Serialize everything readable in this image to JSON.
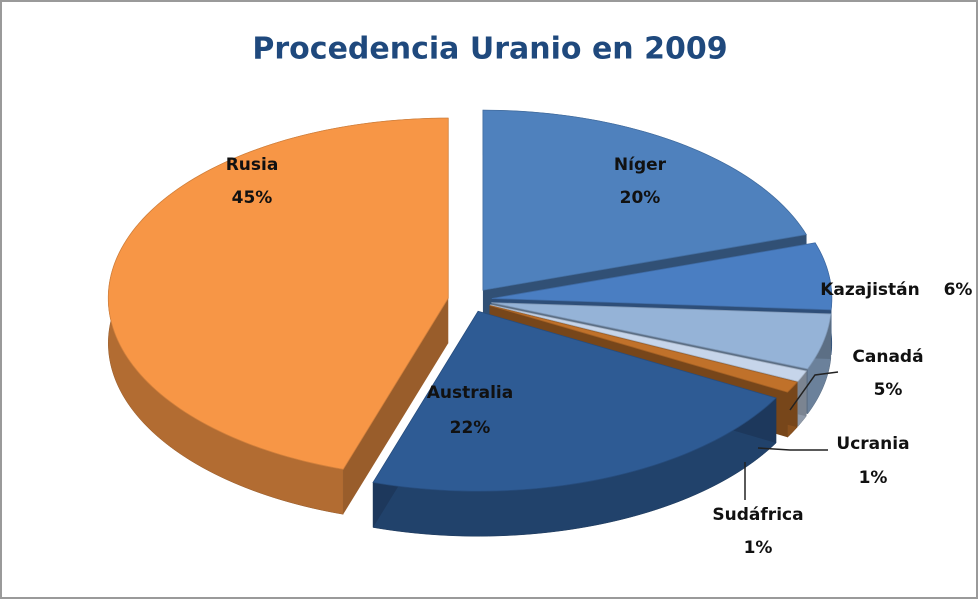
{
  "chart_data": {
    "type": "pie3d",
    "title": "Procedencia Uranio en 2009",
    "categories": [
      "Níger",
      "Kazajistán",
      "Canadá",
      "Ucrania",
      "Sudáfrica",
      "Australia",
      "Rusia"
    ],
    "values": [
      20,
      6,
      5,
      1,
      1,
      22,
      45
    ],
    "value_labels": [
      "20%",
      "6%",
      "5%",
      "1%",
      "1%",
      "22%",
      "45%"
    ],
    "colors": [
      "#4f81bd",
      "#4a7ec2",
      "#95b3d7",
      "#c6d5ea",
      "#c0712a",
      "#2e5b94",
      "#f79646"
    ]
  }
}
